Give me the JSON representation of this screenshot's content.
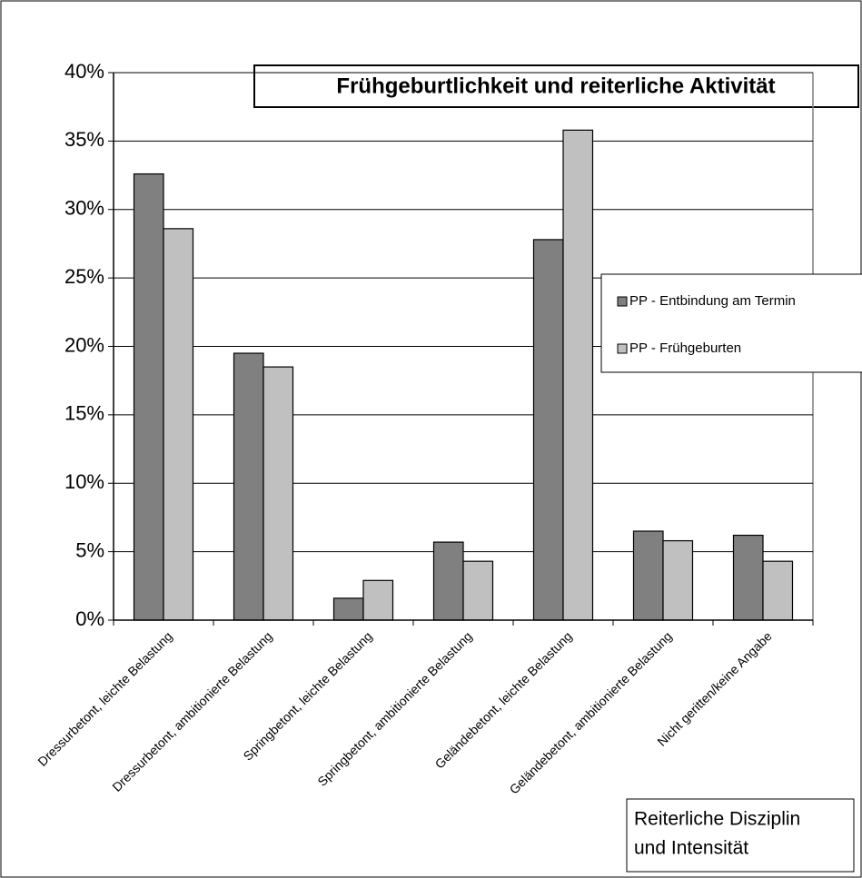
{
  "chart_data": {
    "type": "bar",
    "title": "Frühgeburtlichkeit und reiterliche Aktivität",
    "x_label_lines": [
      "Reiterliche Disziplin",
      "und Intensität"
    ],
    "categories": [
      "Dressurbetont, leichte Belastung",
      "Dressurbetont, ambitionierte Belastung",
      "Springbetont, leichte Belastung",
      "Springbetont, ambitionierte Belastung",
      "Geländebetont, leichte Belastung",
      "Geländebetont, ambitionierte Belastung",
      "Nicht geritten/keine Angabe"
    ],
    "series": [
      {
        "name": "PP - Entbindung am Termin",
        "color": "#808080",
        "values": [
          32.6,
          19.5,
          1.6,
          5.7,
          27.8,
          6.5,
          6.2
        ]
      },
      {
        "name": "PP - Frühgeburten",
        "color": "#c0c0c0",
        "values": [
          28.6,
          18.5,
          2.9,
          4.3,
          35.8,
          5.8,
          4.3
        ]
      }
    ],
    "ylim": [
      0,
      40
    ],
    "yticks": [
      {
        "value": 0,
        "label": "0%"
      },
      {
        "value": 5,
        "label": "5%"
      },
      {
        "value": 10,
        "label": "10%"
      },
      {
        "value": 15,
        "label": "15%"
      },
      {
        "value": 20,
        "label": "20%"
      },
      {
        "value": 25,
        "label": "25%"
      },
      {
        "value": 30,
        "label": "30%"
      },
      {
        "value": 35,
        "label": "35%"
      },
      {
        "value": 40,
        "label": "40%"
      }
    ],
    "grid": true,
    "legend": "right"
  }
}
